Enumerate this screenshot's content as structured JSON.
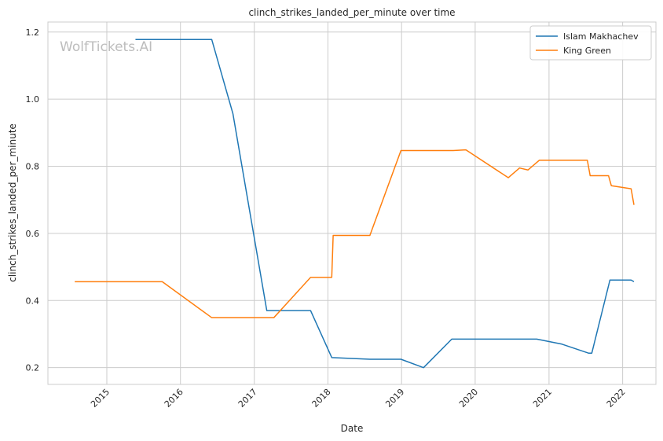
{
  "chart_data": {
    "type": "line",
    "title": "clinch_strikes_landed_per_minute over time",
    "xlabel": "Date",
    "ylabel": "clinch_strikes_landed_per_minute",
    "watermark": "WolfTickets.AI",
    "xlim": [
      "2014-03-15",
      "2022-06-15"
    ],
    "ylim": [
      0.15,
      1.23
    ],
    "x_ticks": [
      "2015",
      "2016",
      "2017",
      "2018",
      "2019",
      "2020",
      "2021",
      "2022"
    ],
    "y_ticks": [
      0.2,
      0.4,
      0.6,
      0.8,
      1.0,
      1.2
    ],
    "grid": true,
    "legend_position": "top-right",
    "series": [
      {
        "name": "Islam Makhachev",
        "color": "#1f77b4",
        "points": [
          [
            "2015-05-23",
            1.178
          ],
          [
            "2016-06-04",
            1.178
          ],
          [
            "2016-09-17",
            0.957
          ],
          [
            "2017-03-04",
            0.37
          ],
          [
            "2017-10-07",
            0.37
          ],
          [
            "2018-01-20",
            0.23
          ],
          [
            "2018-07-28",
            0.225
          ],
          [
            "2018-12-29",
            0.225
          ],
          [
            "2019-04-20",
            0.2
          ],
          [
            "2019-09-07",
            0.285
          ],
          [
            "2020-11-01",
            0.285
          ],
          [
            "2021-03-06",
            0.27
          ],
          [
            "2021-07-17",
            0.243
          ],
          [
            "2021-08-01",
            0.243
          ],
          [
            "2021-10-30",
            0.461
          ],
          [
            "2022-02-12",
            0.461
          ],
          [
            "2022-02-26",
            0.456
          ]
        ]
      },
      {
        "name": "King Green",
        "color": "#ff7f0e",
        "points": [
          [
            "2014-07-26",
            0.456
          ],
          [
            "2015-10-03",
            0.456
          ],
          [
            "2016-06-04",
            0.349
          ],
          [
            "2017-04-08",
            0.349
          ],
          [
            "2017-10-07",
            0.469
          ],
          [
            "2018-01-20",
            0.469
          ],
          [
            "2018-01-27",
            0.594
          ],
          [
            "2018-07-28",
            0.594
          ],
          [
            "2018-12-29",
            0.847
          ],
          [
            "2019-09-14",
            0.847
          ],
          [
            "2019-11-16",
            0.849
          ],
          [
            "2020-06-13",
            0.766
          ],
          [
            "2020-08-08",
            0.795
          ],
          [
            "2020-09-19",
            0.789
          ],
          [
            "2020-11-14",
            0.818
          ],
          [
            "2021-07-10",
            0.818
          ],
          [
            "2021-07-24",
            0.772
          ],
          [
            "2021-10-23",
            0.772
          ],
          [
            "2021-11-06",
            0.742
          ],
          [
            "2022-02-12",
            0.733
          ],
          [
            "2022-02-26",
            0.685
          ]
        ]
      }
    ]
  }
}
